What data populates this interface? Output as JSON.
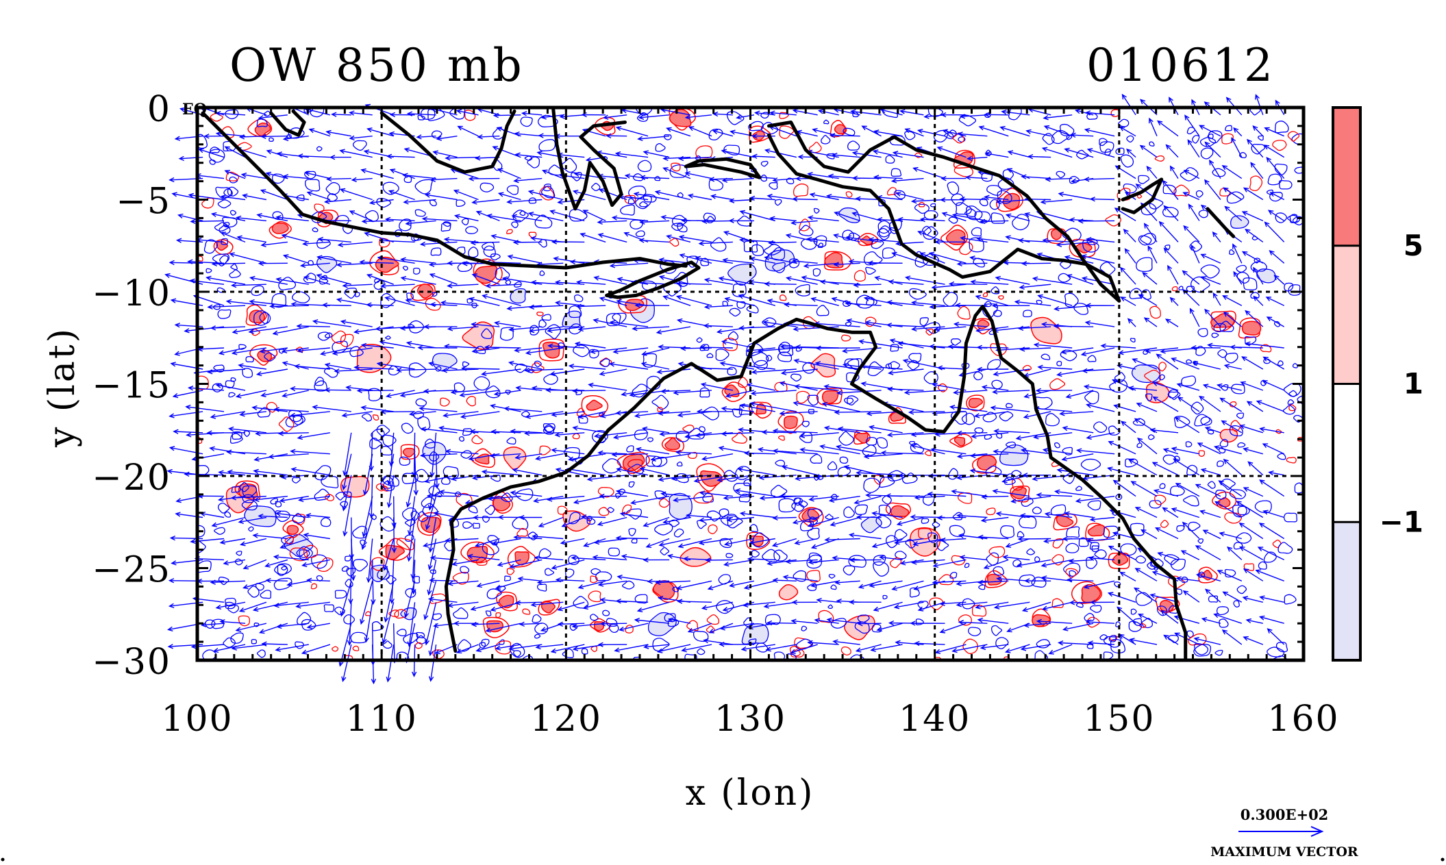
{
  "chart_data": {
    "type": "heatmap",
    "title": "OW 850 mb",
    "date_label": "010612",
    "xlabel": "x (lon)",
    "ylabel": "y (lat)",
    "xlim": [
      100,
      160
    ],
    "ylim": [
      -30,
      0
    ],
    "x_ticks": [
      100,
      110,
      120,
      130,
      140,
      150,
      160
    ],
    "y_ticks": [
      0,
      -5,
      -10,
      -15,
      -20,
      -25,
      -30
    ],
    "x_tick_labels": [
      "100",
      "110",
      "120",
      "130",
      "140",
      "150",
      "160"
    ],
    "y_tick_labels": [
      "0",
      "−5",
      "−10",
      "−15",
      "−20",
      "−25",
      "−30"
    ],
    "grid": true,
    "grid_lines_x": [
      110,
      120,
      130,
      140,
      150
    ],
    "grid_lines_y": [
      -10,
      -20
    ],
    "corner_label": "EQ",
    "colorbar": {
      "levels": [
        -1,
        1,
        5
      ],
      "level_labels": [
        "−1",
        "1",
        "5"
      ],
      "colors": [
        "#e3e3f7",
        "#ffffff",
        "#ffcccc",
        "#f87a7a"
      ]
    },
    "contour_colors": {
      "positive": "#ff0000",
      "negative": "#0000ff",
      "coast": "#000000",
      "vectors": "#0000ff"
    },
    "vector_legend": {
      "value_label": "0.300E+02",
      "caption": "MAXIMUM VECTOR"
    },
    "series": [
      {
        "role": "coastline",
        "segments": [
          [
            [
              100.3,
              -0.3
            ],
            [
              101.5,
              -1.5
            ],
            [
              103,
              -3
            ],
            [
              104.5,
              -4.5
            ],
            [
              105.7,
              -5.8
            ],
            [
              107,
              -6.2
            ],
            [
              108.5,
              -6.5
            ],
            [
              110,
              -6.8
            ],
            [
              111.5,
              -6.9
            ],
            [
              113,
              -7.2
            ],
            [
              114.5,
              -8.1
            ],
            [
              116,
              -8.5
            ],
            [
              118,
              -8.6
            ],
            [
              120,
              -8.7
            ],
            [
              122,
              -8.4
            ],
            [
              124,
              -8.2
            ],
            [
              125.5,
              -8.5
            ],
            [
              126.5,
              -8.6
            ]
          ],
          [
            [
              104,
              -0.3
            ],
            [
              104.8,
              -1.2
            ],
            [
              105.5,
              -1.5
            ],
            [
              105.8,
              -0.8
            ],
            [
              105.2,
              -0.2
            ]
          ],
          [
            [
              110,
              -0.3
            ],
            [
              111.5,
              -1.5
            ],
            [
              113,
              -2.9
            ],
            [
              114.5,
              -3.5
            ],
            [
              116,
              -3.2
            ],
            [
              116.5,
              -2.2
            ],
            [
              116.8,
              -1
            ],
            [
              117.2,
              -0.2
            ]
          ],
          [
            [
              119.3,
              0
            ],
            [
              119.5,
              -2
            ],
            [
              119.8,
              -3.5
            ],
            [
              120.5,
              -5.5
            ],
            [
              121,
              -4.5
            ],
            [
              121.3,
              -3
            ],
            [
              122,
              -4
            ],
            [
              122.5,
              -5.3
            ],
            [
              123,
              -4.7
            ],
            [
              122.6,
              -3.3
            ],
            [
              121.5,
              -2.3
            ],
            [
              120.8,
              -1.6
            ],
            [
              121.5,
              -1
            ],
            [
              123.2,
              -0.8
            ]
          ],
          [
            [
              126.5,
              -3.2
            ],
            [
              127.5,
              -3.1
            ],
            [
              128.5,
              -3.3
            ],
            [
              129.5,
              -3.5
            ],
            [
              130.5,
              -3.8
            ],
            [
              130,
              -3.1
            ],
            [
              128.7,
              -2.8
            ],
            [
              127.2,
              -2.9
            ],
            [
              126.5,
              -3.2
            ]
          ],
          [
            [
              131,
              -1
            ],
            [
              132.2,
              -0.8
            ],
            [
              133,
              -2.3
            ],
            [
              134,
              -3.2
            ],
            [
              135.3,
              -3.5
            ],
            [
              136.5,
              -2.3
            ],
            [
              137.8,
              -1.6
            ],
            [
              139,
              -2.3
            ],
            [
              140.5,
              -2.7
            ],
            [
              142,
              -3.2
            ],
            [
              143.5,
              -3.7
            ],
            [
              145,
              -4.8
            ],
            [
              146,
              -6
            ],
            [
              147.2,
              -7
            ],
            [
              148,
              -8.2
            ],
            [
              149,
              -9.6
            ],
            [
              150,
              -10.5
            ],
            [
              149.5,
              -9.2
            ],
            [
              148.2,
              -8.5
            ],
            [
              147,
              -8.3
            ],
            [
              145.8,
              -8.2
            ],
            [
              144.5,
              -7.7
            ],
            [
              143,
              -8.9
            ],
            [
              141.5,
              -9.2
            ],
            [
              140.8,
              -8.8
            ],
            [
              139,
              -8
            ],
            [
              138.2,
              -7.4
            ],
            [
              137.5,
              -5.5
            ],
            [
              136.5,
              -4.5
            ],
            [
              135,
              -4.3
            ],
            [
              133.6,
              -3.9
            ],
            [
              132.5,
              -3.6
            ],
            [
              131.5,
              -2.5
            ],
            [
              131,
              -1.5
            ]
          ],
          [
            [
              150.2,
              -5
            ],
            [
              151.2,
              -4.6
            ],
            [
              151.8,
              -4.2
            ],
            [
              152.3,
              -3.9
            ],
            [
              151.8,
              -5
            ],
            [
              150.8,
              -5.7
            ],
            [
              150.2,
              -5.5
            ]
          ],
          [
            [
              154.8,
              -5.5
            ],
            [
              155.8,
              -6.6
            ],
            [
              156.2,
              -7
            ]
          ],
          [
            [
              122.2,
              -10.2
            ],
            [
              123,
              -9.9
            ],
            [
              124,
              -9.4
            ],
            [
              125.5,
              -8.8
            ],
            [
              126.8,
              -8.4
            ],
            [
              127.2,
              -8.7
            ],
            [
              126.2,
              -9.3
            ],
            [
              125,
              -9.8
            ],
            [
              123.8,
              -10.2
            ],
            [
              122.8,
              -10.3
            ],
            [
              122.2,
              -10.2
            ]
          ],
          [
            [
              114,
              -29.5
            ],
            [
              113.6,
              -27.5
            ],
            [
              113.5,
              -26
            ],
            [
              113.9,
              -24
            ],
            [
              113.8,
              -22.5
            ],
            [
              114.3,
              -21.8
            ],
            [
              115.5,
              -21.2
            ],
            [
              117,
              -20.6
            ],
            [
              118.5,
              -20.3
            ],
            [
              120,
              -19.8
            ],
            [
              121.2,
              -18.9
            ],
            [
              122.3,
              -17.5
            ],
            [
              123.7,
              -16.3
            ],
            [
              125.3,
              -14.7
            ],
            [
              126.8,
              -13.9
            ],
            [
              128.2,
              -14.8
            ],
            [
              129.5,
              -14.6
            ],
            [
              130.2,
              -12.8
            ],
            [
              131.5,
              -12
            ],
            [
              132.5,
              -11.5
            ],
            [
              133.2,
              -11.7
            ],
            [
              134.2,
              -12
            ],
            [
              135.5,
              -12.2
            ],
            [
              136.5,
              -12.2
            ],
            [
              136.8,
              -13
            ],
            [
              135.9,
              -14.2
            ],
            [
              135.5,
              -15
            ],
            [
              136.8,
              -15.8
            ],
            [
              138.5,
              -16.8
            ],
            [
              139.5,
              -17.5
            ],
            [
              140.5,
              -17.6
            ],
            [
              141.3,
              -16.5
            ],
            [
              141.6,
              -14.6
            ],
            [
              141.7,
              -12.8
            ],
            [
              142.2,
              -11.3
            ],
            [
              142.6,
              -10.8
            ],
            [
              143.1,
              -11.6
            ],
            [
              143.6,
              -13.6
            ],
            [
              144.5,
              -14.3
            ],
            [
              145.3,
              -15
            ],
            [
              145.5,
              -16.4
            ],
            [
              146.1,
              -17.8
            ],
            [
              146.3,
              -19
            ],
            [
              148,
              -20.2
            ],
            [
              149.1,
              -21.2
            ],
            [
              150.2,
              -22.3
            ],
            [
              150.8,
              -23.4
            ],
            [
              152,
              -24.8
            ],
            [
              153,
              -25.6
            ],
            [
              153.1,
              -27
            ],
            [
              153.6,
              -28.5
            ],
            [
              153.6,
              -30
            ]
          ]
        ]
      },
      {
        "role": "positive_ow_patches_gt5",
        "points": [
          [
            122.2,
            -1
          ],
          [
            126.3,
            -0.6
          ],
          [
            130.5,
            -1.5
          ],
          [
            134.8,
            -1.2
          ],
          [
            141.6,
            -2.8
          ],
          [
            144.2,
            -5.1
          ],
          [
            146.6,
            -6.9
          ],
          [
            148.1,
            -7.6
          ],
          [
            141.2,
            -7.1
          ],
          [
            134.6,
            -8.3
          ],
          [
            136.3,
            -7.2
          ],
          [
            103.5,
            -1.2
          ],
          [
            104.5,
            -6.6
          ],
          [
            107,
            -6
          ],
          [
            101.3,
            -7.5
          ],
          [
            112.3,
            -10
          ],
          [
            110.3,
            -8.5
          ],
          [
            115.7,
            -9
          ],
          [
            123.7,
            -10.7
          ],
          [
            103.2,
            -11.3
          ],
          [
            103.6,
            -13.4
          ],
          [
            119.2,
            -13.2
          ],
          [
            121.5,
            -16.2
          ],
          [
            142.6,
            -11.8
          ],
          [
            142.2,
            -16
          ],
          [
            141.4,
            -18.1
          ],
          [
            142.8,
            -19.3
          ],
          [
            144.6,
            -21
          ],
          [
            147,
            -22.5
          ],
          [
            148.8,
            -23
          ],
          [
            150,
            -24.6
          ],
          [
            148.4,
            -26.4
          ],
          [
            152.5,
            -27
          ],
          [
            154.8,
            -25.4
          ],
          [
            155.7,
            -21.4
          ],
          [
            157.1,
            -12
          ],
          [
            155.6,
            -11.6
          ],
          [
            116.5,
            -21.5
          ],
          [
            117.6,
            -24.4
          ],
          [
            115.2,
            -24.2
          ],
          [
            116.8,
            -26.8
          ],
          [
            119.1,
            -27.1
          ],
          [
            116.1,
            -28.2
          ],
          [
            121.8,
            -28.1
          ],
          [
            125.4,
            -26.2
          ],
          [
            130.4,
            -23.5
          ],
          [
            133.2,
            -22.2
          ],
          [
            138.1,
            -21.9
          ],
          [
            143.2,
            -25.7
          ],
          [
            145.8,
            -27.8
          ],
          [
            129,
            -15.4
          ],
          [
            130.6,
            -16.4
          ],
          [
            132.2,
            -17.1
          ],
          [
            134.4,
            -15.7
          ],
          [
            136.1,
            -17.9
          ],
          [
            138,
            -16.8
          ],
          [
            125.8,
            -18.3
          ],
          [
            123.6,
            -19.2
          ],
          [
            127.8,
            -20.1
          ],
          [
            111.5,
            -18.7
          ],
          [
            115.5,
            -19.1
          ],
          [
            102.8,
            -20.8
          ],
          [
            105.2,
            -22.9
          ],
          [
            112.7,
            -22.6
          ],
          [
            110.7,
            -24.1
          ]
        ]
      },
      {
        "role": "positive_ow_patches_1_to_5",
        "points": [
          [
            117.2,
            -19
          ],
          [
            108.5,
            -20.6
          ],
          [
            102.2,
            -21.2
          ],
          [
            115.4,
            -12.5
          ],
          [
            109.5,
            -13.6
          ],
          [
            134,
            -14
          ],
          [
            146,
            -12.2
          ],
          [
            152,
            -15.5
          ],
          [
            156,
            -17.8
          ],
          [
            127,
            -24.5
          ],
          [
            132,
            -26.3
          ],
          [
            136,
            -28.1
          ],
          [
            139.5,
            -23.5
          ],
          [
            120.5,
            -22.5
          ]
        ]
      },
      {
        "role": "negative_ow_patches_lt_minus1",
        "points": [
          [
            124.2,
            -11
          ],
          [
            129.5,
            -9
          ],
          [
            131.5,
            -8.3
          ],
          [
            112.8,
            -18.7
          ],
          [
            103.5,
            -22.2
          ],
          [
            105.5,
            -23.8
          ],
          [
            109.8,
            -25.2
          ],
          [
            111.5,
            -27.5
          ],
          [
            113.4,
            -13.8
          ],
          [
            126.2,
            -21.6
          ],
          [
            125.2,
            -28
          ],
          [
            130.2,
            -28.6
          ],
          [
            136.5,
            -22.6
          ],
          [
            144.2,
            -18.8
          ],
          [
            151.5,
            -14.4
          ],
          [
            156.5,
            -6.2
          ],
          [
            158,
            -9.1
          ],
          [
            135.4,
            -5.8
          ],
          [
            117.4,
            -10.2
          ],
          [
            120.3,
            -11.5
          ],
          [
            107,
            -8.5
          ]
        ]
      }
    ]
  }
}
